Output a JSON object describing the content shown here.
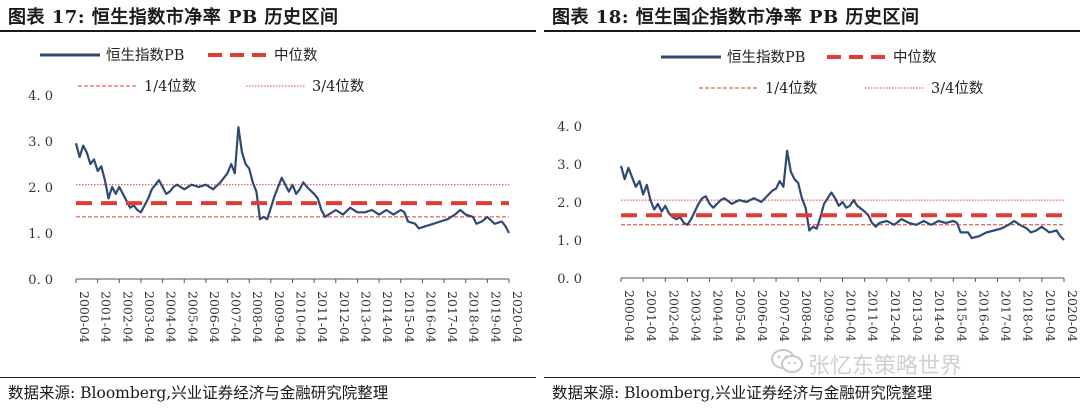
{
  "panels": [
    {
      "title": "图表 17:  恒生指数市净率 PB 历史区间",
      "source": "数据来源: Bloomberg,兴业证券经济与金融研究院整理",
      "chart_data": {
        "type": "line",
        "series": [
          {
            "name": "恒生指数PB",
            "color": "#2e4a72",
            "points": [
              [
                "2000-04",
                2.95
              ],
              [
                "2000-06",
                2.65
              ],
              [
                "2000-08",
                2.9
              ],
              [
                "2000-10",
                2.75
              ],
              [
                "2000-12",
                2.5
              ],
              [
                "2001-02",
                2.6
              ],
              [
                "2001-04",
                2.35
              ],
              [
                "2001-06",
                2.45
              ],
              [
                "2001-08",
                2.15
              ],
              [
                "2001-10",
                1.75
              ],
              [
                "2001-12",
                2.0
              ],
              [
                "2002-02",
                1.85
              ],
              [
                "2002-04",
                2.0
              ],
              [
                "2002-06",
                1.85
              ],
              [
                "2002-08",
                1.7
              ],
              [
                "2002-10",
                1.55
              ],
              [
                "2002-12",
                1.6
              ],
              [
                "2003-02",
                1.5
              ],
              [
                "2003-04",
                1.45
              ],
              [
                "2003-06",
                1.6
              ],
              [
                "2003-08",
                1.75
              ],
              [
                "2003-10",
                1.95
              ],
              [
                "2003-12",
                2.05
              ],
              [
                "2004-02",
                2.15
              ],
              [
                "2004-04",
                2.0
              ],
              [
                "2004-06",
                1.85
              ],
              [
                "2004-08",
                1.9
              ],
              [
                "2004-10",
                2.0
              ],
              [
                "2004-12",
                2.05
              ],
              [
                "2005-04",
                1.95
              ],
              [
                "2005-08",
                2.05
              ],
              [
                "2005-12",
                2.0
              ],
              [
                "2006-04",
                2.05
              ],
              [
                "2006-08",
                1.95
              ],
              [
                "2006-12",
                2.1
              ],
              [
                "2007-02",
                2.2
              ],
              [
                "2007-04",
                2.3
              ],
              [
                "2007-06",
                2.5
              ],
              [
                "2007-08",
                2.3
              ],
              [
                "2007-10",
                3.3
              ],
              [
                "2007-12",
                2.75
              ],
              [
                "2008-02",
                2.5
              ],
              [
                "2008-04",
                2.4
              ],
              [
                "2008-06",
                2.1
              ],
              [
                "2008-08",
                1.9
              ],
              [
                "2008-10",
                1.3
              ],
              [
                "2008-12",
                1.35
              ],
              [
                "2009-02",
                1.3
              ],
              [
                "2009-04",
                1.55
              ],
              [
                "2009-06",
                1.8
              ],
              [
                "2009-08",
                2.0
              ],
              [
                "2009-10",
                2.2
              ],
              [
                "2009-12",
                2.05
              ],
              [
                "2010-02",
                1.9
              ],
              [
                "2010-04",
                2.05
              ],
              [
                "2010-06",
                1.85
              ],
              [
                "2010-08",
                1.95
              ],
              [
                "2010-10",
                2.1
              ],
              [
                "2010-12",
                2.0
              ],
              [
                "2011-04",
                1.85
              ],
              [
                "2011-06",
                1.75
              ],
              [
                "2011-08",
                1.5
              ],
              [
                "2011-10",
                1.35
              ],
              [
                "2011-12",
                1.4
              ],
              [
                "2012-04",
                1.5
              ],
              [
                "2012-08",
                1.4
              ],
              [
                "2012-12",
                1.55
              ],
              [
                "2013-04",
                1.45
              ],
              [
                "2013-08",
                1.45
              ],
              [
                "2013-12",
                1.5
              ],
              [
                "2014-04",
                1.4
              ],
              [
                "2014-08",
                1.5
              ],
              [
                "2014-12",
                1.4
              ],
              [
                "2015-04",
                1.5
              ],
              [
                "2015-06",
                1.45
              ],
              [
                "2015-08",
                1.25
              ],
              [
                "2015-12",
                1.2
              ],
              [
                "2016-02",
                1.1
              ],
              [
                "2016-06",
                1.15
              ],
              [
                "2016-10",
                1.2
              ],
              [
                "2017-02",
                1.25
              ],
              [
                "2017-06",
                1.3
              ],
              [
                "2017-10",
                1.4
              ],
              [
                "2018-01",
                1.5
              ],
              [
                "2018-04",
                1.4
              ],
              [
                "2018-08",
                1.35
              ],
              [
                "2018-10",
                1.2
              ],
              [
                "2019-01",
                1.25
              ],
              [
                "2019-04",
                1.35
              ],
              [
                "2019-08",
                1.2
              ],
              [
                "2019-12",
                1.25
              ],
              [
                "2020-02",
                1.15
              ],
              [
                "2020-04",
                1.0
              ]
            ]
          },
          {
            "name": "中位数",
            "color": "#e03c31",
            "value": 1.65
          },
          {
            "name": "1/4位数",
            "color": "#e03c31",
            "value": 1.35
          },
          {
            "name": "3/4位数",
            "color": "#e03c31",
            "value": 2.05
          }
        ],
        "ylim": [
          0,
          4
        ],
        "yticks": [
          "4. 0",
          "3. 0",
          "2. 0",
          "1. 0",
          "0. 0"
        ],
        "xticks": [
          "2000-04",
          "2001-04",
          "2002-04",
          "2003-04",
          "2004-04",
          "2005-04",
          "2006-04",
          "2007-04",
          "2008-04",
          "2009-04",
          "2010-04",
          "2011-04",
          "2012-04",
          "2013-04",
          "2014-04",
          "2015-04",
          "2016-04",
          "2017-04",
          "2018-04",
          "2019-04",
          "2020-04"
        ],
        "legend": "top"
      }
    },
    {
      "title": "图表 18:  恒生国企指数市净率 PB 历史区间",
      "source": "数据来源: Bloomberg,兴业证券经济与金融研究院整理",
      "chart_data": {
        "type": "line",
        "series": [
          {
            "name": "恒生指数PB",
            "color": "#2e4a72",
            "points": [
              [
                "2000-04",
                2.95
              ],
              [
                "2000-06",
                2.6
              ],
              [
                "2000-08",
                2.9
              ],
              [
                "2000-10",
                2.65
              ],
              [
                "2000-12",
                2.4
              ],
              [
                "2001-02",
                2.55
              ],
              [
                "2001-04",
                2.2
              ],
              [
                "2001-06",
                2.45
              ],
              [
                "2001-08",
                2.05
              ],
              [
                "2001-10",
                1.8
              ],
              [
                "2001-12",
                1.95
              ],
              [
                "2002-02",
                1.75
              ],
              [
                "2002-04",
                1.9
              ],
              [
                "2002-06",
                1.7
              ],
              [
                "2002-08",
                1.6
              ],
              [
                "2002-10",
                1.55
              ],
              [
                "2002-12",
                1.6
              ],
              [
                "2003-02",
                1.45
              ],
              [
                "2003-04",
                1.4
              ],
              [
                "2003-06",
                1.55
              ],
              [
                "2003-08",
                1.75
              ],
              [
                "2003-10",
                1.95
              ],
              [
                "2003-12",
                2.1
              ],
              [
                "2004-02",
                2.15
              ],
              [
                "2004-04",
                1.95
              ],
              [
                "2004-06",
                1.85
              ],
              [
                "2004-08",
                1.95
              ],
              [
                "2004-10",
                2.05
              ],
              [
                "2004-12",
                2.1
              ],
              [
                "2005-04",
                1.95
              ],
              [
                "2005-08",
                2.05
              ],
              [
                "2005-12",
                2.0
              ],
              [
                "2006-04",
                2.1
              ],
              [
                "2006-08",
                2.0
              ],
              [
                "2006-12",
                2.2
              ],
              [
                "2007-02",
                2.3
              ],
              [
                "2007-04",
                2.35
              ],
              [
                "2007-06",
                2.55
              ],
              [
                "2007-08",
                2.4
              ],
              [
                "2007-10",
                3.35
              ],
              [
                "2007-12",
                2.8
              ],
              [
                "2008-02",
                2.6
              ],
              [
                "2008-04",
                2.5
              ],
              [
                "2008-06",
                2.1
              ],
              [
                "2008-08",
                1.85
              ],
              [
                "2008-10",
                1.25
              ],
              [
                "2008-12",
                1.35
              ],
              [
                "2009-02",
                1.3
              ],
              [
                "2009-04",
                1.6
              ],
              [
                "2009-06",
                1.95
              ],
              [
                "2009-08",
                2.1
              ],
              [
                "2009-10",
                2.25
              ],
              [
                "2009-12",
                2.1
              ],
              [
                "2010-02",
                1.9
              ],
              [
                "2010-04",
                2.0
              ],
              [
                "2010-06",
                1.85
              ],
              [
                "2010-08",
                1.9
              ],
              [
                "2010-10",
                2.05
              ],
              [
                "2010-12",
                1.9
              ],
              [
                "2011-04",
                1.75
              ],
              [
                "2011-06",
                1.65
              ],
              [
                "2011-08",
                1.45
              ],
              [
                "2011-10",
                1.35
              ],
              [
                "2011-12",
                1.45
              ],
              [
                "2012-04",
                1.5
              ],
              [
                "2012-08",
                1.4
              ],
              [
                "2012-12",
                1.55
              ],
              [
                "2013-04",
                1.45
              ],
              [
                "2013-08",
                1.4
              ],
              [
                "2013-12",
                1.5
              ],
              [
                "2014-04",
                1.4
              ],
              [
                "2014-08",
                1.5
              ],
              [
                "2014-12",
                1.45
              ],
              [
                "2015-04",
                1.5
              ],
              [
                "2015-06",
                1.45
              ],
              [
                "2015-08",
                1.2
              ],
              [
                "2015-12",
                1.2
              ],
              [
                "2016-02",
                1.05
              ],
              [
                "2016-06",
                1.1
              ],
              [
                "2016-10",
                1.2
              ],
              [
                "2017-02",
                1.25
              ],
              [
                "2017-06",
                1.3
              ],
              [
                "2017-10",
                1.4
              ],
              [
                "2018-01",
                1.5
              ],
              [
                "2018-04",
                1.4
              ],
              [
                "2018-08",
                1.3
              ],
              [
                "2018-10",
                1.2
              ],
              [
                "2019-01",
                1.25
              ],
              [
                "2019-04",
                1.35
              ],
              [
                "2019-08",
                1.2
              ],
              [
                "2019-12",
                1.25
              ],
              [
                "2020-02",
                1.1
              ],
              [
                "2020-04",
                1.0
              ]
            ]
          },
          {
            "name": "中位数",
            "color": "#e03c31",
            "value": 1.65
          },
          {
            "name": "1/4位数",
            "color": "#e03c31",
            "value": 1.4
          },
          {
            "name": "3/4位数",
            "color": "#e03c31",
            "value": 2.05
          }
        ],
        "ylim": [
          0,
          4
        ],
        "yticks": [
          "4. 0",
          "3. 0",
          "2. 0",
          "1. 0",
          "0. 0"
        ],
        "xticks": [
          "2000-04",
          "2001-04",
          "2002-04",
          "2003-04",
          "2004-04",
          "2005-04",
          "2006-04",
          "2007-04",
          "2008-04",
          "2009-04",
          "2010-04",
          "2011-04",
          "2012-04",
          "2013-04",
          "2014-04",
          "2015-04",
          "2016-04",
          "2017-04",
          "2018-04",
          "2019-04",
          "2020-04"
        ],
        "legend": "top"
      }
    }
  ],
  "watermark": "张忆东策略世界",
  "watermark_icon": "wechat-icon"
}
